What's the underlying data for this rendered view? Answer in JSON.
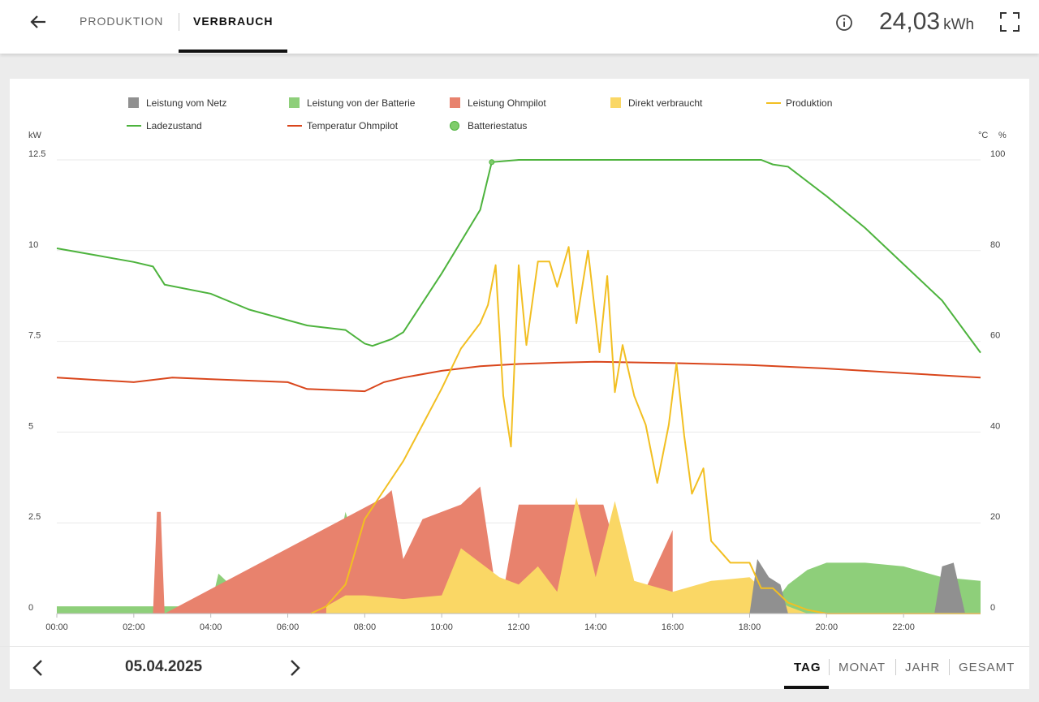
{
  "header": {
    "tabs": [
      {
        "label": "PRODUKTION",
        "active": false
      },
      {
        "label": "VERBRAUCH",
        "active": true
      }
    ],
    "total_value": "24,03",
    "total_unit": "kWh",
    "icons": [
      "arrow-left-icon",
      "info-icon",
      "fullscreen-icon"
    ]
  },
  "footer": {
    "date": "05.04.2025",
    "periods": [
      {
        "label": "TAG",
        "active": true
      },
      {
        "label": "MONAT",
        "active": false
      },
      {
        "label": "JAHR",
        "active": false
      },
      {
        "label": "GESAMT",
        "active": false
      }
    ],
    "icons": [
      "chevron-left-icon",
      "chevron-right-icon"
    ]
  },
  "chart_data": {
    "type": "area",
    "left_axis_unit": "kW",
    "right_axis_units": [
      "°C",
      "%"
    ],
    "y_left_ticks": [
      "0",
      "2.5",
      "5",
      "7.5",
      "10",
      "12.5"
    ],
    "y_right_ticks": [
      "0",
      "20",
      "40",
      "60",
      "80",
      "100"
    ],
    "x_ticks": [
      "00:00",
      "02:00",
      "04:00",
      "06:00",
      "08:00",
      "10:00",
      "12:00",
      "14:00",
      "16:00",
      "18:00",
      "20:00",
      "22:00"
    ],
    "ylim_left": [
      0,
      12.5
    ],
    "ylim_right": [
      0,
      100
    ],
    "xlim": [
      0,
      24
    ],
    "legend": [
      {
        "label": "Leistung vom Netz",
        "color": "#909090",
        "kind": "box"
      },
      {
        "label": "Leistung von der Batterie",
        "color": "#8ecf7a",
        "kind": "box"
      },
      {
        "label": "Leistung Ohmpilot",
        "color": "#e8826d",
        "kind": "box"
      },
      {
        "label": "Direkt verbraucht",
        "color": "#fad765",
        "kind": "box"
      },
      {
        "label": "Produktion",
        "color": "#f2bf22",
        "kind": "line"
      },
      {
        "label": "Ladezustand",
        "color": "#4db33d",
        "kind": "line"
      },
      {
        "label": "Temperatur Ohmpilot",
        "color": "#d9461c",
        "kind": "line"
      },
      {
        "label": "Batteriestatus",
        "color": "#7fcc6b",
        "kind": "dot"
      }
    ],
    "series": {
      "ladezustand": {
        "axis": "percent",
        "x": [
          0,
          1,
          2,
          2.5,
          2.8,
          4,
          5,
          6.5,
          7.5,
          8,
          8.2,
          8.7,
          9,
          10,
          11,
          11.3,
          12,
          13,
          15,
          16,
          17,
          18.3,
          18.6,
          19,
          20,
          21,
          22,
          23,
          24
        ],
        "y": [
          80.5,
          79,
          77.5,
          76.5,
          72.5,
          70.5,
          67,
          63.5,
          62.5,
          59.5,
          59,
          60.5,
          62,
          75,
          89,
          99.5,
          100,
          100,
          100,
          100,
          100,
          100,
          99,
          98.5,
          92,
          85,
          77,
          69,
          57.5
        ]
      },
      "temperatur_ohmpilot": {
        "axis": "percent",
        "x": [
          0,
          2,
          3,
          6,
          6.5,
          8,
          8.5,
          9,
          10,
          11,
          12,
          13,
          14,
          16,
          18,
          20,
          22,
          24
        ],
        "y": [
          52,
          51,
          52,
          51,
          49.5,
          49,
          51,
          52,
          53.5,
          54.5,
          55,
          55.3,
          55.5,
          55.2,
          54.8,
          54,
          53,
          52
        ]
      },
      "produktion": {
        "axis": "kw",
        "x": [
          6.6,
          7,
          7.5,
          8,
          8.5,
          9,
          9.5,
          10,
          10.5,
          11,
          11.2,
          11.4,
          11.6,
          11.8,
          12.0,
          12.2,
          12.5,
          12.8,
          13.0,
          13.3,
          13.5,
          13.8,
          14.1,
          14.3,
          14.5,
          14.7,
          15.0,
          15.3,
          15.6,
          15.9,
          16.1,
          16.3,
          16.5,
          16.8,
          17.0,
          17.5,
          18.0,
          18.3,
          18.6,
          19.0,
          19.5,
          20.0,
          24
        ],
        "y": [
          0,
          0.2,
          0.8,
          2.6,
          3.4,
          4.2,
          5.2,
          6.2,
          7.3,
          8.0,
          8.5,
          9.6,
          6.0,
          4.6,
          9.6,
          7.4,
          9.7,
          9.7,
          9.0,
          10.1,
          8.0,
          10.0,
          7.2,
          9.3,
          6.1,
          7.4,
          6.0,
          5.2,
          3.6,
          5.2,
          6.9,
          4.9,
          3.3,
          4.0,
          2.0,
          1.4,
          1.4,
          0.7,
          0.7,
          0.3,
          0.1,
          0,
          0
        ]
      },
      "batterie": {
        "axis": "kw",
        "x": [
          0,
          2,
          4,
          4.2,
          5,
          6,
          7,
          7.5,
          7.8,
          8,
          8.5,
          9,
          18,
          18.5,
          19,
          19.5,
          20,
          21,
          22,
          23,
          24
        ],
        "y": [
          0.2,
          0.2,
          0.2,
          1.1,
          0.3,
          0.2,
          0.2,
          2.8,
          1.8,
          0.3,
          0,
          0,
          0,
          0.1,
          0.8,
          1.2,
          1.4,
          1.4,
          1.3,
          1.0,
          0.9
        ]
      },
      "ohmpilot": {
        "axis": "kw",
        "x": [
          2.5,
          2.6,
          2.7,
          2.8,
          8.5,
          8.7,
          9.0,
          9.5,
          10.5,
          11.0,
          11.5,
          12.0,
          14.2,
          15.0,
          16.0
        ],
        "y": [
          0,
          2.8,
          2.8,
          0,
          3.2,
          3.4,
          1.5,
          2.6,
          3.0,
          3.5,
          0,
          3.0,
          3.0,
          0,
          2.3
        ]
      },
      "direkt": {
        "axis": "kw",
        "x": [
          7,
          7.5,
          8,
          9,
          10,
          10.5,
          11,
          11.5,
          12,
          12.5,
          13,
          13.5,
          14,
          14.5,
          15,
          16,
          17,
          18,
          18.5,
          19,
          19.5
        ],
        "y": [
          0.2,
          0.5,
          0.5,
          0.4,
          0.5,
          1.8,
          1.4,
          1.0,
          0.8,
          1.3,
          0.6,
          3.2,
          1.0,
          3.1,
          0.9,
          0.6,
          0.9,
          1.0,
          0.5,
          0.2,
          0
        ]
      },
      "netz": {
        "axis": "kw",
        "x": [
          18,
          18.2,
          18.5,
          18.8,
          19,
          22.8,
          23.0,
          23.3,
          23.6
        ],
        "y": [
          0,
          1.5,
          1.0,
          0.8,
          0,
          0,
          1.3,
          1.4,
          0
        ]
      }
    }
  }
}
